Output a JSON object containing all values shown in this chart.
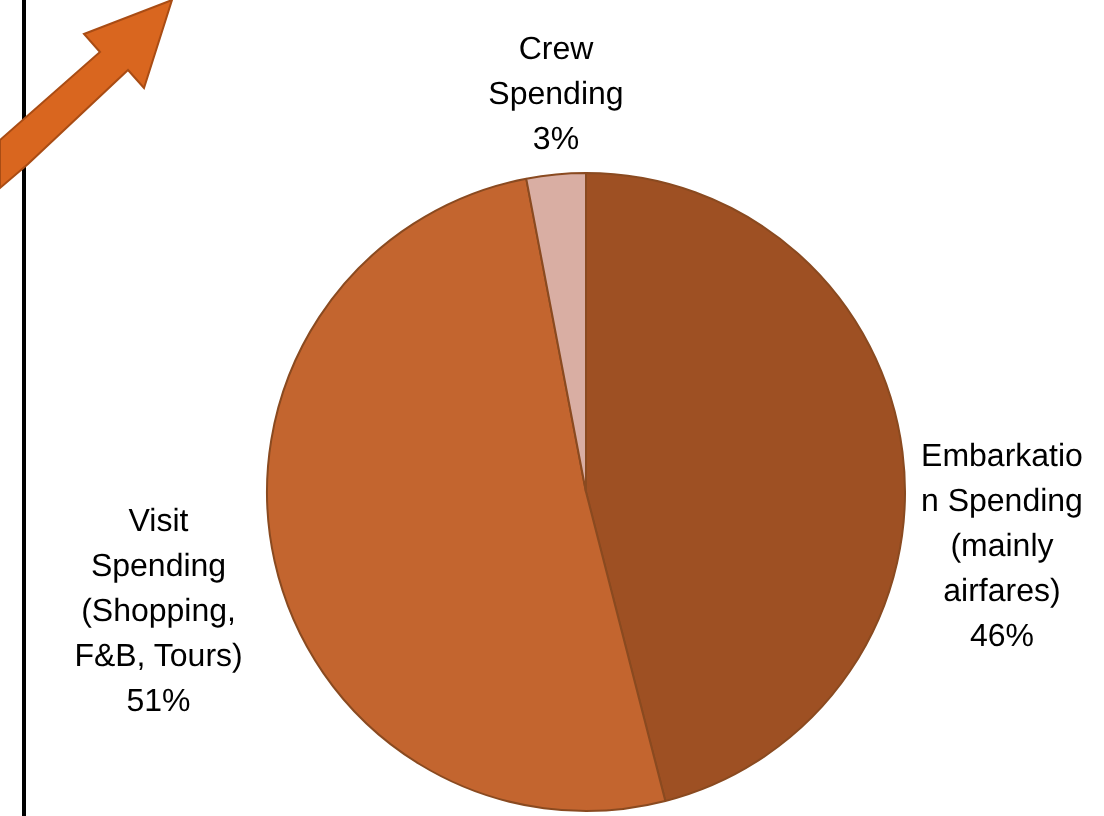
{
  "chart_data": {
    "type": "pie",
    "categories": [
      "Embarkation Spending (mainly airfares)",
      "Visit Spending (Shopping, F&B, Tours)",
      "Crew Spending"
    ],
    "values": [
      46,
      51,
      3
    ],
    "colors": [
      "#9e5023",
      "#c3652f",
      "#d9aea3"
    ],
    "value_labels": [
      "46%",
      "51%",
      "3%"
    ],
    "legend": false
  }
}
